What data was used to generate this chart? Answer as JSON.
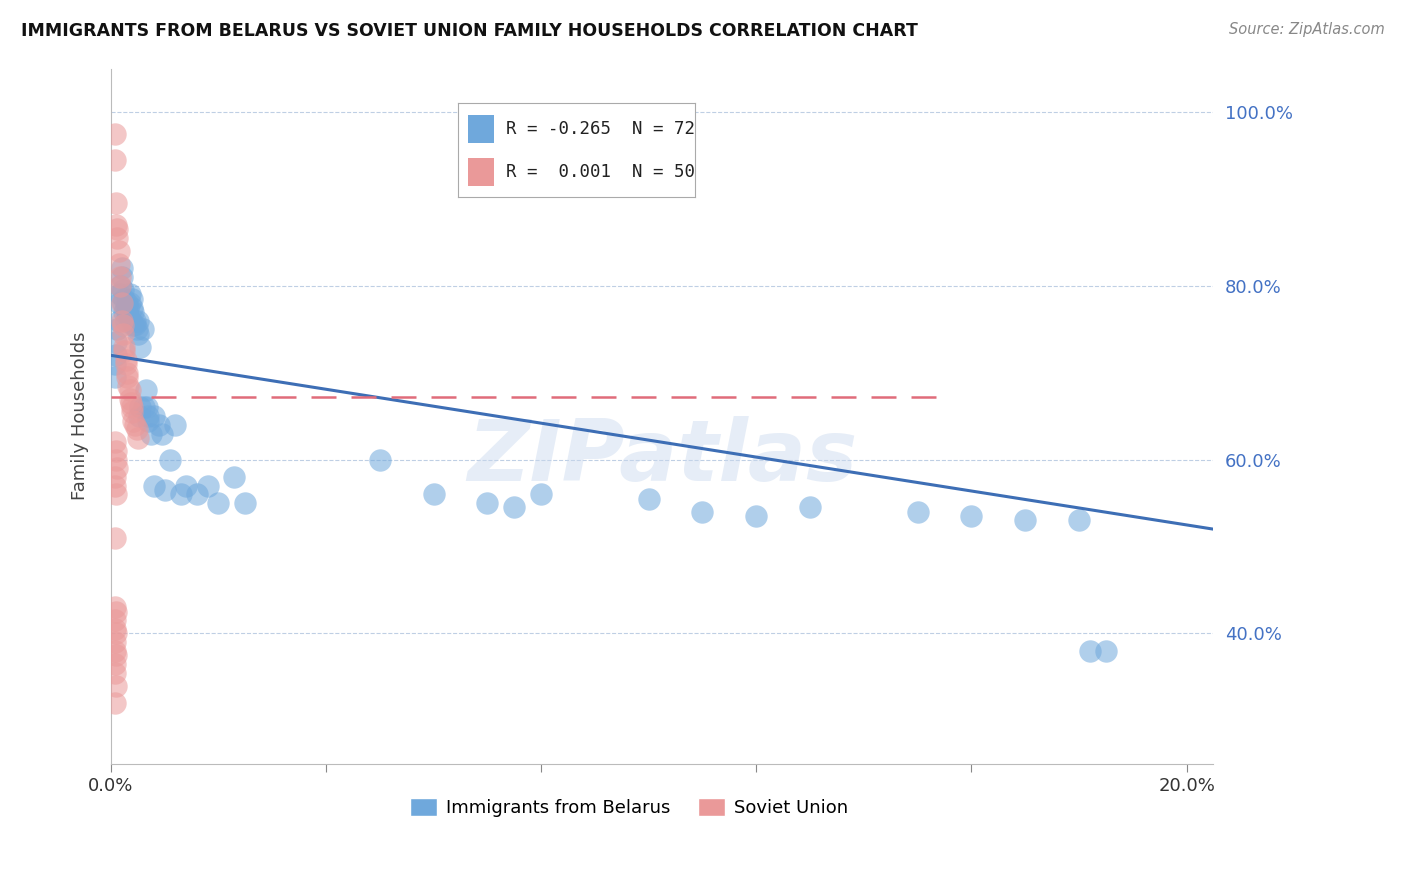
{
  "title": "IMMIGRANTS FROM BELARUS VS SOVIET UNION FAMILY HOUSEHOLDS CORRELATION CHART",
  "source": "Source: ZipAtlas.com",
  "ylabel": "Family Households",
  "legend_entries": [
    "Immigrants from Belarus",
    "Soviet Union"
  ],
  "r_belarus": -0.265,
  "n_belarus": 72,
  "r_soviet": 0.001,
  "n_soviet": 50,
  "xlim": [
    0.0,
    0.205
  ],
  "ylim": [
    0.25,
    1.05
  ],
  "yticks": [
    0.4,
    0.6,
    0.8,
    1.0
  ],
  "ytick_labels": [
    "40.0%",
    "60.0%",
    "80.0%",
    "100.0%"
  ],
  "xticks": [
    0.0,
    0.04,
    0.08,
    0.12,
    0.16,
    0.2
  ],
  "xtick_labels": [
    "0.0%",
    "",
    "",
    "",
    "",
    "20.0%"
  ],
  "color_belarus": "#6fa8dc",
  "color_soviet": "#ea9999",
  "trend_color_belarus": "#3d6eb5",
  "trend_color_soviet": "#e06c7a",
  "watermark": "ZIPatlas",
  "belarus_x": [
    0.0008,
    0.0008,
    0.001,
    0.001,
    0.0012,
    0.0015,
    0.0015,
    0.0018,
    0.0018,
    0.002,
    0.002,
    0.0022,
    0.0022,
    0.0025,
    0.0025,
    0.0028,
    0.0028,
    0.003,
    0.003,
    0.0032,
    0.0032,
    0.0035,
    0.0035,
    0.0038,
    0.004,
    0.004,
    0.0042,
    0.0042,
    0.0045,
    0.0045,
    0.0048,
    0.005,
    0.005,
    0.0052,
    0.0055,
    0.0055,
    0.006,
    0.0062,
    0.0065,
    0.0068,
    0.007,
    0.007,
    0.0075,
    0.008,
    0.008,
    0.009,
    0.0095,
    0.01,
    0.011,
    0.012,
    0.013,
    0.014,
    0.016,
    0.018,
    0.02,
    0.023,
    0.025,
    0.05,
    0.06,
    0.07,
    0.075,
    0.08,
    0.1,
    0.11,
    0.12,
    0.13,
    0.15,
    0.16,
    0.17,
    0.18,
    0.182,
    0.185
  ],
  "belarus_y": [
    0.695,
    0.71,
    0.72,
    0.735,
    0.75,
    0.76,
    0.78,
    0.79,
    0.8,
    0.81,
    0.82,
    0.78,
    0.795,
    0.77,
    0.785,
    0.76,
    0.775,
    0.77,
    0.78,
    0.765,
    0.775,
    0.78,
    0.79,
    0.76,
    0.775,
    0.785,
    0.755,
    0.77,
    0.76,
    0.755,
    0.75,
    0.745,
    0.76,
    0.65,
    0.73,
    0.66,
    0.75,
    0.66,
    0.68,
    0.66,
    0.645,
    0.65,
    0.63,
    0.65,
    0.57,
    0.64,
    0.63,
    0.565,
    0.6,
    0.64,
    0.56,
    0.57,
    0.56,
    0.57,
    0.55,
    0.58,
    0.55,
    0.6,
    0.56,
    0.55,
    0.545,
    0.56,
    0.555,
    0.54,
    0.535,
    0.545,
    0.54,
    0.535,
    0.53,
    0.53,
    0.38,
    0.38
  ],
  "soviet_x": [
    0.0008,
    0.0008,
    0.001,
    0.001,
    0.0012,
    0.0012,
    0.0015,
    0.0015,
    0.0018,
    0.0018,
    0.002,
    0.002,
    0.0022,
    0.0022,
    0.0025,
    0.0025,
    0.0028,
    0.0028,
    0.003,
    0.003,
    0.0032,
    0.0035,
    0.0035,
    0.0038,
    0.004,
    0.004,
    0.0042,
    0.0045,
    0.0048,
    0.005,
    0.0008,
    0.001,
    0.001,
    0.0012,
    0.0008,
    0.0008,
    0.001,
    0.0008,
    0.0008,
    0.001,
    0.0008,
    0.0008,
    0.001,
    0.0008,
    0.0008,
    0.001,
    0.0008,
    0.0008,
    0.001,
    0.0008
  ],
  "soviet_y": [
    0.975,
    0.945,
    0.895,
    0.87,
    0.865,
    0.855,
    0.84,
    0.825,
    0.81,
    0.8,
    0.78,
    0.76,
    0.755,
    0.745,
    0.73,
    0.725,
    0.715,
    0.71,
    0.7,
    0.695,
    0.685,
    0.68,
    0.67,
    0.665,
    0.66,
    0.655,
    0.645,
    0.64,
    0.635,
    0.625,
    0.62,
    0.61,
    0.6,
    0.59,
    0.58,
    0.57,
    0.56,
    0.51,
    0.43,
    0.425,
    0.415,
    0.405,
    0.4,
    0.39,
    0.38,
    0.375,
    0.365,
    0.355,
    0.34,
    0.32
  ],
  "trend_belarus_x0": 0.0,
  "trend_belarus_y0": 0.72,
  "trend_belarus_x1": 0.205,
  "trend_belarus_y1": 0.52,
  "trend_soviet_x0": 0.0,
  "trend_soviet_y0": 0.672,
  "trend_soviet_x1": 0.155,
  "trend_soviet_y1": 0.672
}
